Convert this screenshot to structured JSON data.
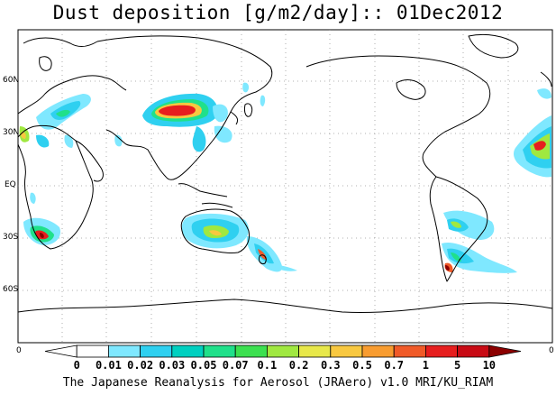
{
  "title": "Dust deposition [g/m2/day]:: 01Dec2012",
  "latitude_labels": [
    "60N",
    "30N",
    "EQ",
    "30S",
    "60S"
  ],
  "edge_labels": {
    "left": "0",
    "right": "0"
  },
  "colorbar": {
    "tick_labels": [
      "0",
      "0.01",
      "0.02",
      "0.03",
      "0.05",
      "0.07",
      "0.1",
      "0.2",
      "0.3",
      "0.5",
      "0.7",
      "1",
      "5",
      "10"
    ],
    "colors": [
      "#ffffff",
      "#ffffff",
      "#7fe8ff",
      "#2fd0f0",
      "#00d0c0",
      "#20e08a",
      "#3ce050",
      "#a0e840",
      "#e8e84a",
      "#f8c840",
      "#f89c30",
      "#f05a28",
      "#e61e1e",
      "#c80a14",
      "#8c0000"
    ]
  },
  "credit": "The Japanese Reanalysis for Aerosol (JRAero) v1.0 MRI/KU_RIAM",
  "colors": {
    "coast": "#000000",
    "grid": "#888888",
    "frame": "#000000"
  }
}
